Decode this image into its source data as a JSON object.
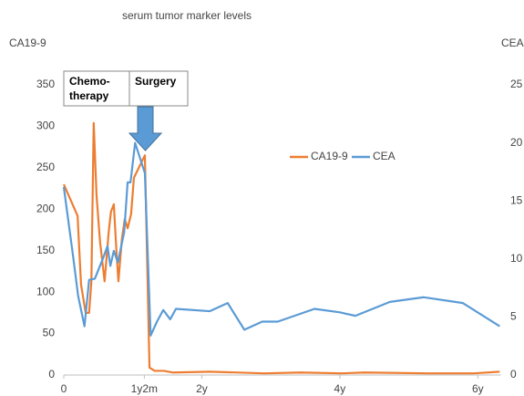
{
  "chart_data": {
    "type": "line",
    "title": "serum tumor marker levels",
    "y_label": "CA19-9",
    "y2_label": "CEA",
    "xlim": [
      0,
      76
    ],
    "xticks": [
      0,
      {
        "value": 14,
        "label": "1y2m"
      },
      {
        "value": 24,
        "label": "2y"
      },
      {
        "value": 48,
        "label": "4y"
      },
      {
        "value": 72,
        "label": "6y"
      }
    ],
    "ylim": [
      0,
      350
    ],
    "yticks": [
      0,
      50,
      100,
      150,
      200,
      250,
      300,
      350
    ],
    "y2lim": [
      0,
      25
    ],
    "y2ticks": [
      0,
      5,
      10,
      15,
      20,
      25
    ],
    "grid": false,
    "legend": "upper right",
    "annotations": [
      {
        "lines": [
          "Chemo-",
          "therapy"
        ]
      },
      {
        "lines": [
          "Surgery"
        ]
      }
    ],
    "series": [
      {
        "name": "CA19-9",
        "color": "#ED7D31",
        "x": [
          0,
          2.4,
          3.0,
          3.8,
          4.4,
          4.8,
          5.2,
          5.7,
          6.3,
          7.1,
          7.8,
          8.2,
          8.7,
          9.2,
          9.5,
          10.1,
          10.6,
          11.1,
          11.7,
          12.2,
          14.1,
          14.9,
          15.8,
          17.4,
          19.0,
          25.4,
          34.9,
          41.2,
          48.3,
          52.3,
          63.4,
          71.3,
          75.8
        ],
        "values": [
          230,
          192,
          109,
          75,
          75,
          113,
          304,
          216,
          161,
          113,
          172,
          197,
          206,
          144,
          113,
          164,
          188,
          177,
          194,
          238,
          265,
          9,
          5,
          5,
          3,
          4,
          2,
          3,
          2,
          3,
          2,
          2,
          4
        ]
      },
      {
        "name": "CEA",
        "color": "#5B9BD5",
        "axis": "y2",
        "x": [
          0,
          1.6,
          2.5,
          3.6,
          4.4,
          5.4,
          6.7,
          7.6,
          8.1,
          8.7,
          9.4,
          10.5,
          11.1,
          11.6,
          12.4,
          14.1,
          15.1,
          16.2,
          17.3,
          18.5,
          19.5,
          25.4,
          28.5,
          31.4,
          34.5,
          37.2,
          43.6,
          48.0,
          50.7,
          56.7,
          62.6,
          69.4,
          75.8
        ],
        "values": [
          16.2,
          10.3,
          6.8,
          4.2,
          8.2,
          8.3,
          9.9,
          11.1,
          9.4,
          10.7,
          9.7,
          12.3,
          16.6,
          16.6,
          20.0,
          17.4,
          3.4,
          4.6,
          5.6,
          4.8,
          5.7,
          5.5,
          6.2,
          3.9,
          4.6,
          4.6,
          5.7,
          5.4,
          5.1,
          6.3,
          6.7,
          6.2,
          4.2
        ]
      }
    ]
  }
}
